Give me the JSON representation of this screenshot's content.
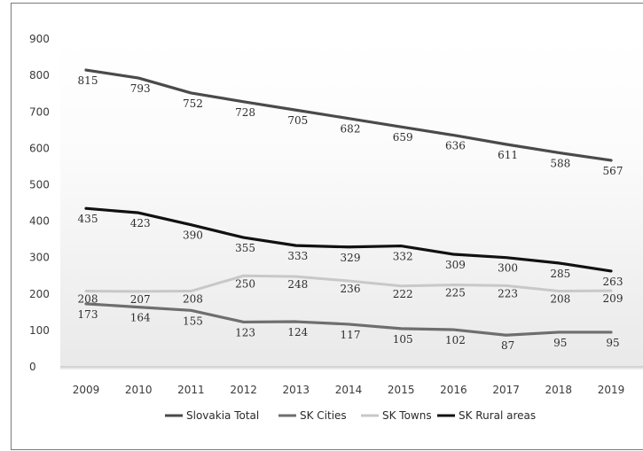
{
  "chart_data": {
    "type": "line",
    "categories": [
      "2009",
      "2010",
      "2011",
      "2012",
      "2013",
      "2014",
      "2015",
      "2016",
      "2017",
      "2018",
      "2019"
    ],
    "ylim": [
      0,
      900
    ],
    "yticks": [
      0,
      100,
      200,
      300,
      400,
      500,
      600,
      700,
      800,
      900
    ],
    "grid": false,
    "legend_position": "bottom",
    "series": [
      {
        "name": "Slovakia Total",
        "color": "#4a4a4a",
        "values": [
          815,
          793,
          752,
          728,
          705,
          682,
          659,
          636,
          611,
          588,
          567
        ]
      },
      {
        "name": "SK Cities",
        "color": "#6e6e6e",
        "values": [
          173,
          164,
          155,
          123,
          124,
          117,
          105,
          102,
          87,
          95,
          95
        ]
      },
      {
        "name": "SK Towns",
        "color": "#c8c8c8",
        "values": [
          208,
          207,
          208,
          250,
          248,
          236,
          222,
          225,
          223,
          208,
          209
        ]
      },
      {
        "name": "SK Rural areas",
        "color": "#111111",
        "values": [
          435,
          423,
          390,
          355,
          333,
          329,
          332,
          309,
          300,
          285,
          263
        ]
      }
    ]
  }
}
